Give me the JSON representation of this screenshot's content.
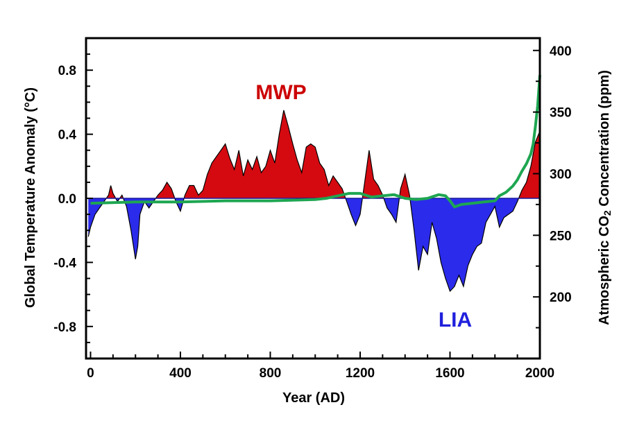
{
  "chart_data": {
    "type": "area",
    "xlabel": "Year (AD)",
    "ylabel_left": "Global Temperature Anomaly (°C)",
    "ylabel_right_main": "Atmospheric CO",
    "ylabel_right_sub": "2",
    "ylabel_right_tail": " Concentration (ppm)",
    "xlim": [
      -20,
      2000
    ],
    "ylim": [
      -1.0,
      1.0
    ],
    "y2lim": [
      150,
      410
    ],
    "x_ticks": [
      0,
      400,
      800,
      1200,
      1600,
      2000
    ],
    "x_tick_labels": [
      "0",
      "400",
      "800",
      "1200",
      "1600",
      "2000"
    ],
    "y_ticks": [
      0.8,
      0.4,
      0.0,
      -0.4,
      -0.8
    ],
    "y_tick_labels": [
      "0.8",
      "0.4",
      "0.0",
      "-0.4",
      "-0.8"
    ],
    "y2_ticks": [
      400,
      350,
      300,
      250,
      200
    ],
    "y2_tick_labels": [
      "400",
      "350",
      "300",
      "250",
      "200"
    ],
    "grid": false,
    "annotations": [
      {
        "text": "MWP",
        "color": "#cc0000"
      },
      {
        "text": "LIA",
        "color": "#2020dd"
      }
    ],
    "series": [
      {
        "role": "temperature",
        "x": [
          -10,
          0,
          20,
          40,
          60,
          80,
          90,
          100,
          120,
          140,
          160,
          180,
          200,
          210,
          220,
          240,
          260,
          280,
          300,
          320,
          340,
          360,
          380,
          400,
          420,
          440,
          460,
          480,
          500,
          520,
          540,
          560,
          580,
          600,
          620,
          640,
          660,
          680,
          700,
          720,
          740,
          760,
          780,
          800,
          820,
          840,
          860,
          880,
          900,
          920,
          940,
          960,
          980,
          1000,
          1020,
          1040,
          1060,
          1080,
          1100,
          1120,
          1140,
          1160,
          1180,
          1200,
          1220,
          1240,
          1260,
          1280,
          1300,
          1320,
          1340,
          1360,
          1380,
          1400,
          1420,
          1440,
          1460,
          1480,
          1500,
          1520,
          1540,
          1560,
          1580,
          1600,
          1620,
          1640,
          1660,
          1680,
          1700,
          1720,
          1740,
          1760,
          1780,
          1800,
          1820,
          1840,
          1860,
          1880,
          1900,
          1920,
          1940,
          1960,
          1980,
          2000
        ],
        "values": [
          -0.24,
          -0.18,
          -0.1,
          -0.06,
          -0.02,
          0.02,
          0.08,
          0.03,
          -0.02,
          0.02,
          -0.05,
          -0.2,
          -0.38,
          -0.3,
          -0.1,
          -0.02,
          -0.06,
          -0.02,
          0.02,
          0.05,
          0.1,
          0.06,
          -0.02,
          -0.08,
          0.02,
          0.08,
          0.08,
          0.02,
          0.05,
          0.15,
          0.22,
          0.26,
          0.3,
          0.34,
          0.25,
          0.18,
          0.3,
          0.14,
          0.24,
          0.18,
          0.26,
          0.16,
          0.2,
          0.3,
          0.22,
          0.4,
          0.55,
          0.45,
          0.34,
          0.24,
          0.16,
          0.32,
          0.34,
          0.32,
          0.22,
          0.18,
          0.08,
          0.14,
          0.1,
          0.06,
          -0.02,
          -0.1,
          -0.17,
          -0.1,
          0.1,
          0.3,
          0.12,
          0.08,
          0.02,
          -0.06,
          -0.1,
          -0.15,
          0.06,
          0.15,
          0.02,
          -0.2,
          -0.45,
          -0.3,
          -0.35,
          -0.15,
          -0.25,
          -0.4,
          -0.5,
          -0.58,
          -0.55,
          -0.48,
          -0.55,
          -0.42,
          -0.35,
          -0.3,
          -0.28,
          -0.15,
          -0.1,
          -0.05,
          -0.18,
          -0.12,
          -0.1,
          -0.08,
          -0.02,
          0.05,
          0.1,
          0.2,
          0.35,
          0.42
        ]
      },
      {
        "role": "co2",
        "x": [
          0,
          200,
          400,
          600,
          800,
          1000,
          1050,
          1100,
          1150,
          1200,
          1250,
          1300,
          1350,
          1400,
          1450,
          1500,
          1550,
          1580,
          1600,
          1620,
          1650,
          1700,
          1750,
          1800,
          1820,
          1850,
          1880,
          1900,
          1920,
          1940,
          1950,
          1960,
          1970,
          1980,
          1990,
          2000
        ],
        "values": [
          276,
          277,
          277,
          278,
          278,
          279,
          280,
          282,
          284,
          284,
          281,
          282,
          283,
          280,
          279,
          280,
          283,
          282,
          278,
          273,
          275,
          276,
          277,
          278,
          282,
          285,
          290,
          295,
          302,
          308,
          312,
          316,
          324,
          338,
          355,
          380
        ]
      }
    ]
  }
}
